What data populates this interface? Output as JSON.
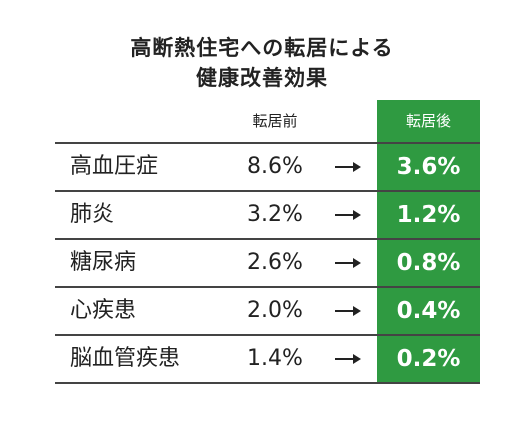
{
  "title": [
    "高断熱住宅への転居による",
    "健康改善効果"
  ],
  "table": {
    "header": {
      "before": "転居前",
      "after": "転居後"
    },
    "rows": [
      {
        "name": "高血圧症",
        "before": "8.6%",
        "after": "3.6%"
      },
      {
        "name": "肺炎",
        "before": "3.2%",
        "after": "1.2%"
      },
      {
        "name": "糖尿病",
        "before": "2.6%",
        "after": "0.8%"
      },
      {
        "name": "心疾患",
        "before": "2.0%",
        "after": "0.4%"
      },
      {
        "name": "脳血管疾患",
        "before": "1.4%",
        "after": "0.2%"
      }
    ]
  }
}
